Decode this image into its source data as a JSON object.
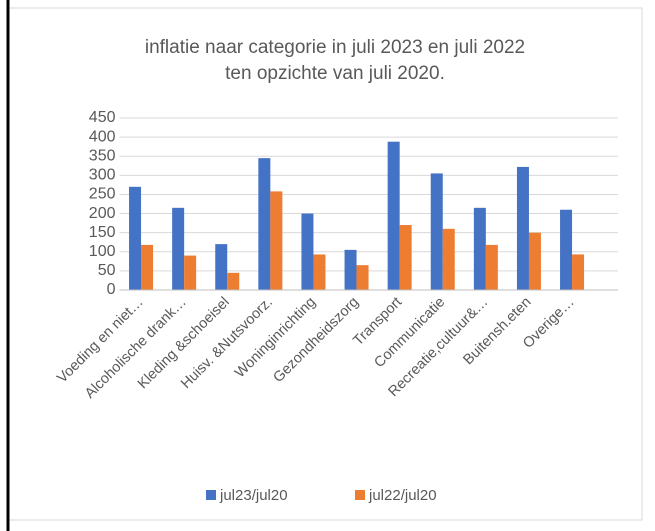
{
  "chart_data": {
    "type": "bar",
    "title": [
      "inflatie naar categorie  in juli 2023  en juli 2022",
      "ten opzichte van juli 2020."
    ],
    "categories": [
      "Voeding en niet…",
      "Alcoholische drank…",
      "Kleding &schoeisel",
      "Huisv. &Nutsvoorz.",
      "Woninginrichting",
      "Gezondheidszorg",
      "Transport",
      "Communicatie",
      "Recreatie,cultuur&…",
      "Buitensh.eten",
      "Overige…"
    ],
    "series": [
      {
        "name": "jul23/jul20",
        "color": "#4472c4",
        "values": [
          270,
          215,
          120,
          345,
          200,
          105,
          388,
          305,
          215,
          322,
          210
        ]
      },
      {
        "name": "jul22/jul20",
        "color": "#ed7d31",
        "values": [
          118,
          90,
          45,
          258,
          93,
          65,
          170,
          160,
          118,
          150,
          93
        ]
      }
    ],
    "ylim": [
      0,
      450
    ],
    "yticks": [
      0,
      50,
      100,
      150,
      200,
      250,
      300,
      350,
      400,
      450
    ],
    "grid": true,
    "legend": "bottom"
  }
}
